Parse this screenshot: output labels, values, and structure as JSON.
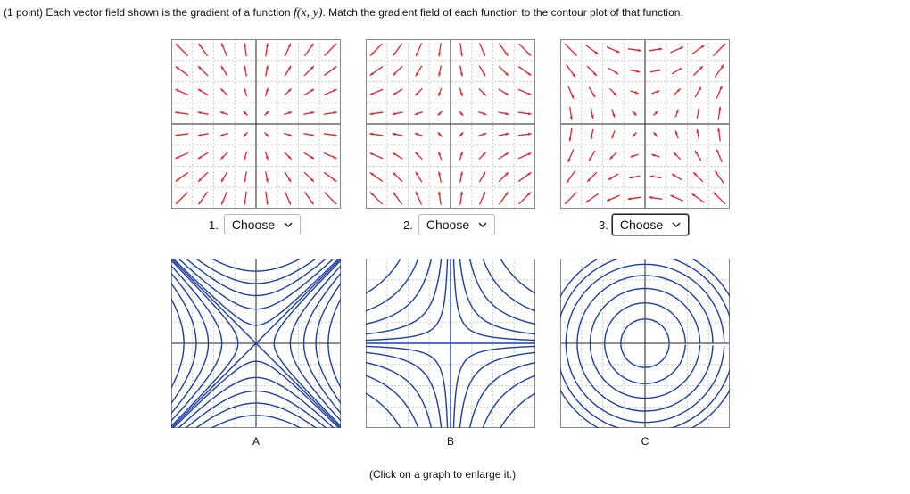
{
  "header": {
    "prompt_prefix": "(1 point) Each vector field shown is the gradient of a function",
    "prompt_math": "f(x, y)",
    "prompt_suffix": ". Match the gradient field of each function to the contour plot of that function."
  },
  "questions": [
    {
      "number": "1.",
      "select": "Choose"
    },
    {
      "number": "2.",
      "select": "Choose"
    },
    {
      "number": "3.",
      "select": "Choose"
    }
  ],
  "contour_labels": [
    "A",
    "B",
    "C"
  ],
  "caption": "(Click on a graph to enlarge it.)"
}
